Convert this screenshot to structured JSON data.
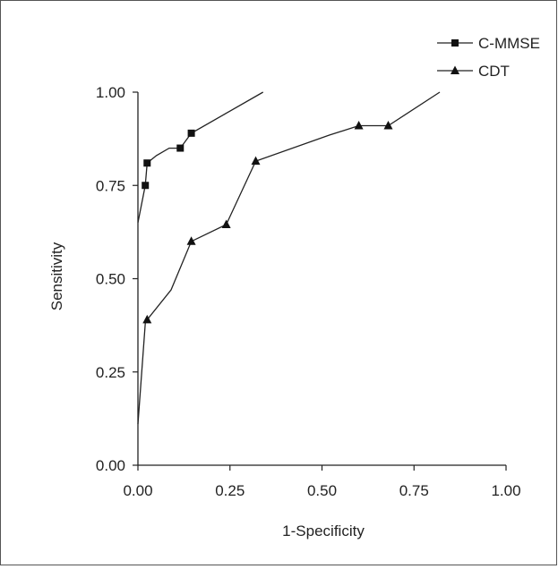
{
  "chart_data": {
    "type": "line",
    "xlabel": "1-Specificity",
    "ylabel": "Sensitivity",
    "xlim": [
      0,
      1
    ],
    "ylim": [
      0,
      1
    ],
    "xticks": [
      "0.00",
      "0.25",
      "0.50",
      "0.75",
      "1.00"
    ],
    "yticks": [
      "0.00",
      "0.25",
      "0.50",
      "0.75",
      "1.00"
    ],
    "grid": false,
    "legend_position": "top-right",
    "series": [
      {
        "name": "C-MMSE",
        "marker": "square",
        "points": [
          [
            0.0,
            0.65
          ],
          [
            0.02,
            0.75
          ],
          [
            0.025,
            0.81
          ],
          [
            0.05,
            0.83
          ],
          [
            0.085,
            0.85
          ],
          [
            0.115,
            0.85
          ],
          [
            0.145,
            0.89
          ],
          [
            0.34,
            1.0
          ]
        ],
        "marked": [
          false,
          true,
          true,
          false,
          false,
          true,
          true,
          false
        ]
      },
      {
        "name": "CDT",
        "marker": "triangle",
        "points": [
          [
            0.0,
            0.11
          ],
          [
            0.02,
            0.38
          ],
          [
            0.025,
            0.39
          ],
          [
            0.09,
            0.47
          ],
          [
            0.145,
            0.6
          ],
          [
            0.24,
            0.645
          ],
          [
            0.32,
            0.815
          ],
          [
            0.52,
            0.885
          ],
          [
            0.6,
            0.91
          ],
          [
            0.68,
            0.91
          ],
          [
            0.82,
            1.0
          ]
        ],
        "marked": [
          false,
          false,
          true,
          false,
          true,
          true,
          true,
          false,
          true,
          true,
          false
        ]
      }
    ]
  }
}
